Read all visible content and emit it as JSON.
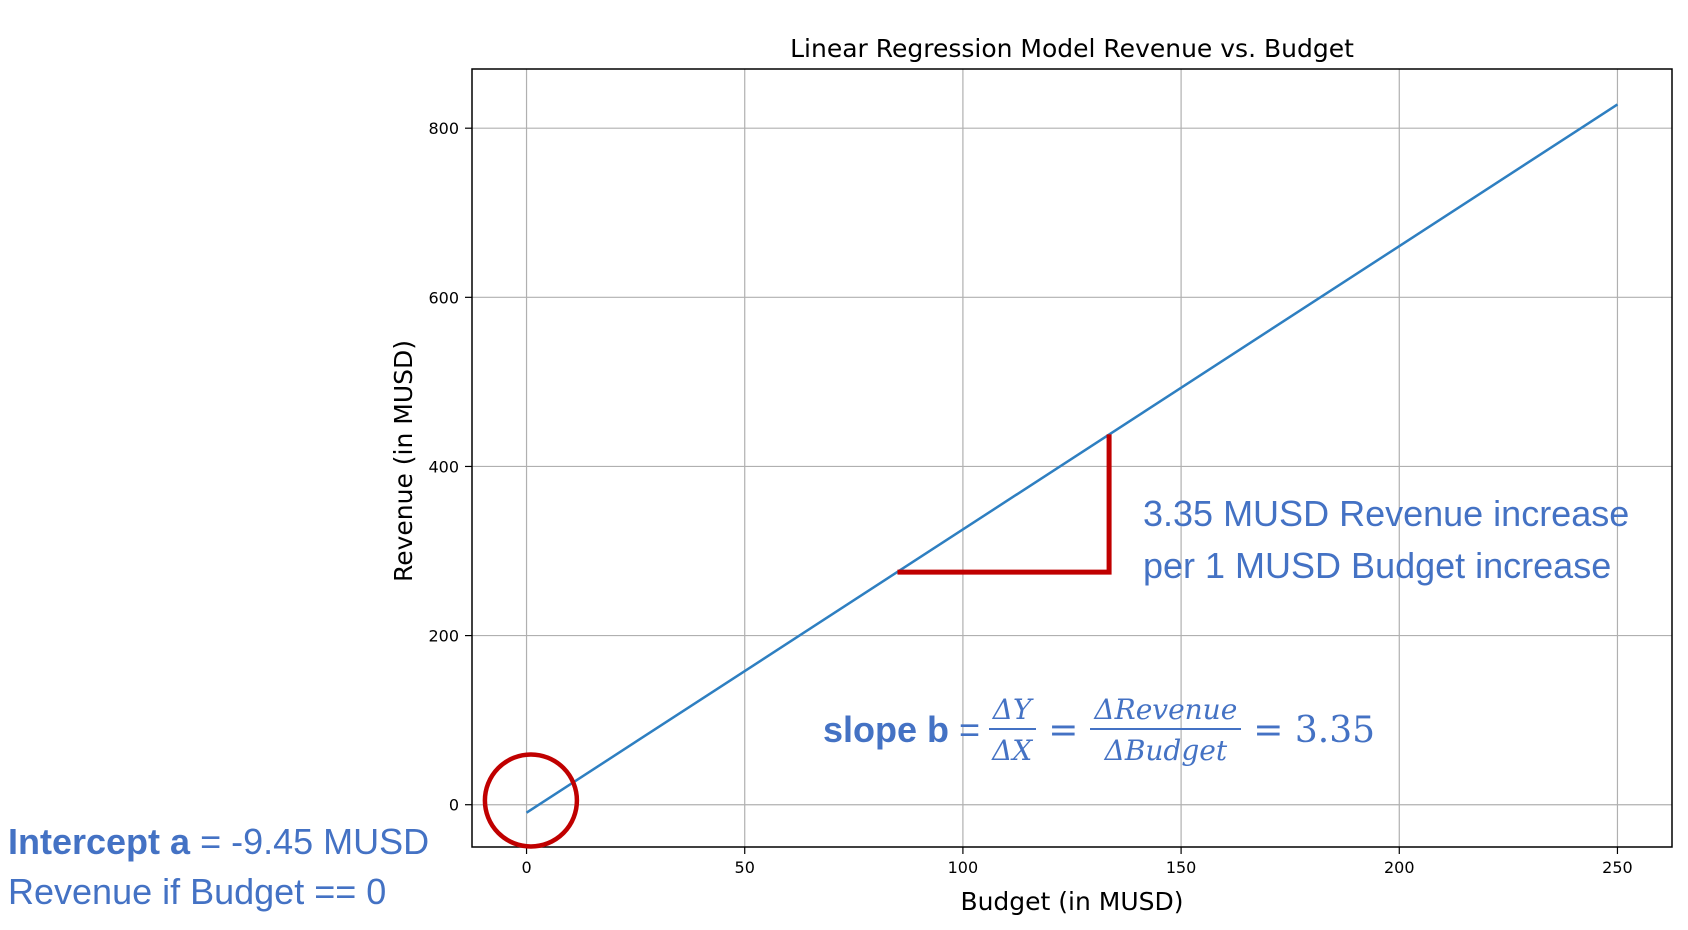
{
  "chart_data": {
    "type": "line",
    "title": "Linear Regression Model Revenue vs. Budget",
    "xlabel": "Budget (in MUSD)",
    "ylabel": "Revenue (in MUSD)",
    "xlim": [
      -12.5,
      262.5
    ],
    "ylim": [
      -50,
      870
    ],
    "xticks": [
      0,
      50,
      100,
      150,
      200,
      250
    ],
    "yticks": [
      0,
      200,
      400,
      600,
      800
    ],
    "grid": true,
    "series": [
      {
        "x": [
          0,
          250
        ],
        "y": [
          -9.45,
          828.05
        ],
        "color": "#2e7fc1"
      }
    ],
    "slope_triangle": {
      "x0": 85,
      "x1": 133.5,
      "y0": 275,
      "y1": 438,
      "color": "#c00000"
    },
    "intercept_marker": {
      "x": 1,
      "y": 5,
      "color": "#c00000"
    }
  },
  "annotations": {
    "increase_line1": "3.35 MUSD Revenue increase",
    "increase_line2": "per 1 MUSD Budget increase",
    "slope_label": "slope b",
    "slope_eq1": "=",
    "slope_num1": "ΔY",
    "slope_den1": "ΔX",
    "slope_eq2": "=",
    "slope_num2": "ΔRevenue",
    "slope_den2": "ΔBudget",
    "slope_result": "= 3.35",
    "intercept_label": "Intercept a",
    "intercept_value": "= -9.45 MUSD",
    "intercept_desc": "Revenue if Budget == 0"
  },
  "colors": {
    "annotation": "#4472c4",
    "highlight": "#c00000",
    "line": "#2e7fc1"
  }
}
